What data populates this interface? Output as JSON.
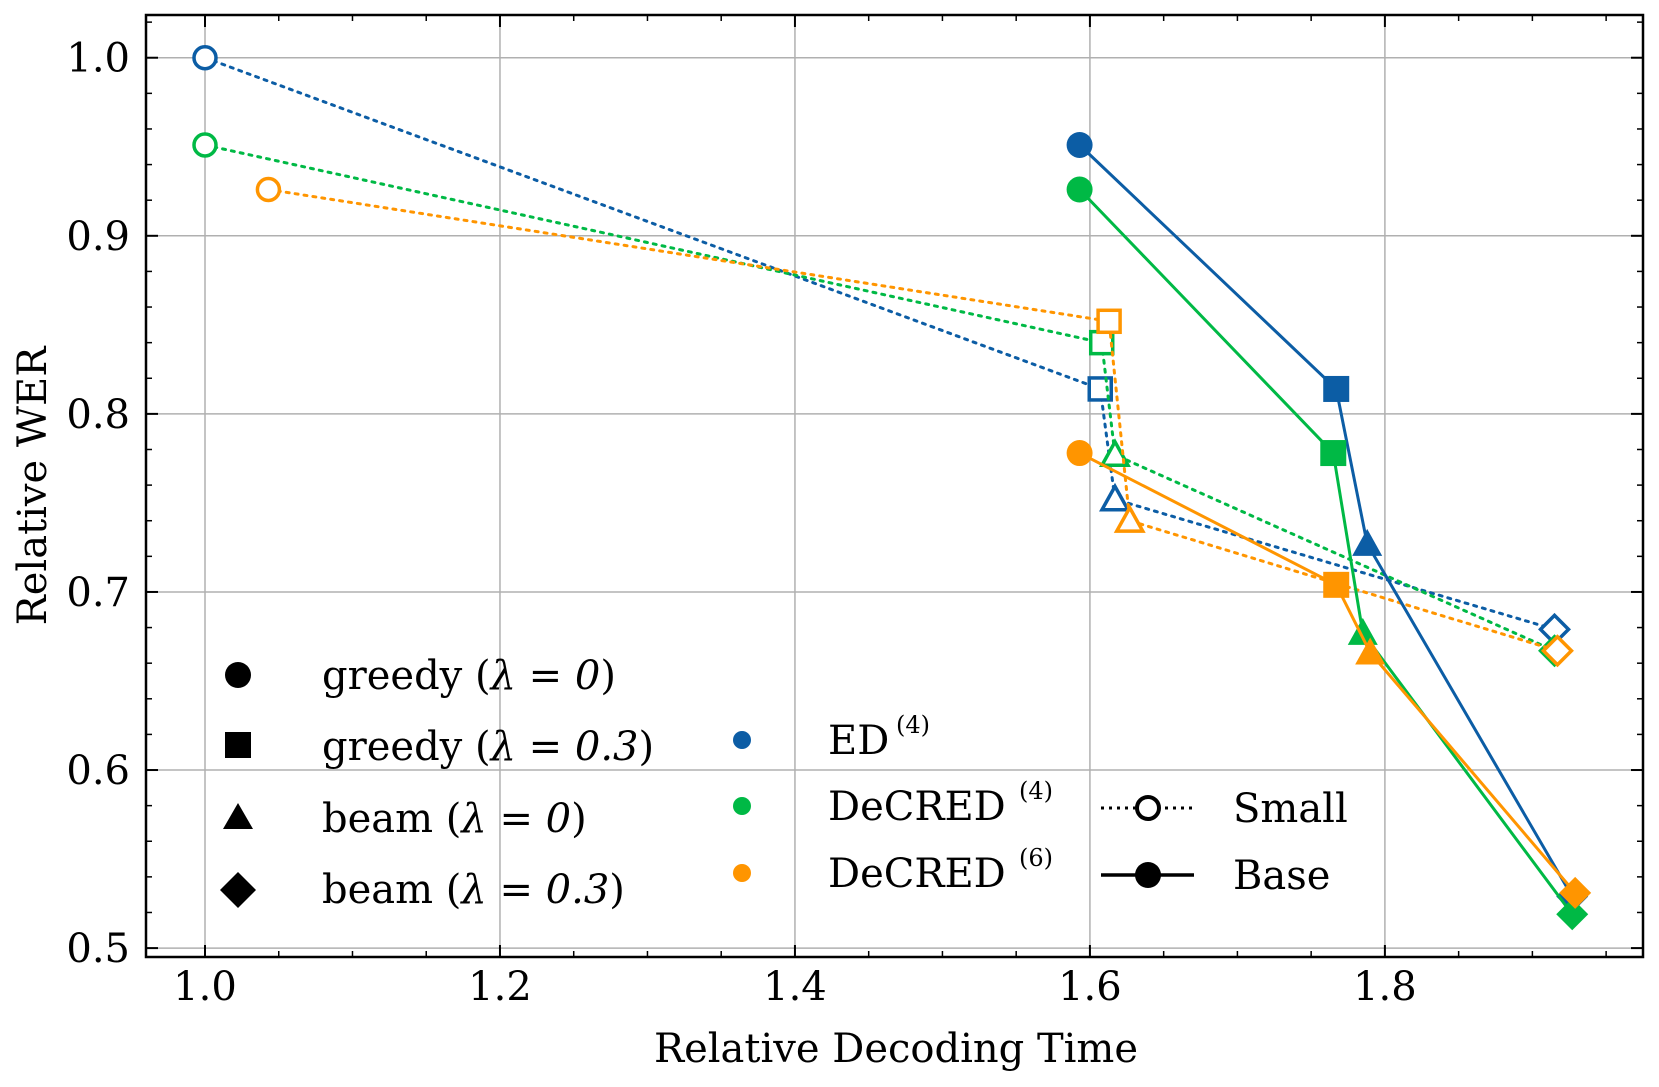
{
  "chart_data": {
    "type": "line",
    "title": "",
    "xlabel": "Relative Decoding Time",
    "ylabel": "Relative WER",
    "xlim": [
      0.96,
      1.975
    ],
    "ylim": [
      0.495,
      1.024
    ],
    "xticks": [
      1.0,
      1.2,
      1.4,
      1.6,
      1.8
    ],
    "xtick_labels": [
      "1.0",
      "1.2",
      "1.4",
      "1.6",
      "1.8"
    ],
    "yticks": [
      0.5,
      0.6,
      0.7,
      0.8,
      0.9,
      1.0
    ],
    "ytick_labels": [
      "0.5",
      "0.6",
      "0.7",
      "0.8",
      "0.9",
      "1.0"
    ],
    "grid": true,
    "colors": {
      "ED4": "#0C5DA5",
      "DeCRED4": "#00B945",
      "DeCRED6": "#FF9500"
    },
    "points": [
      "greedy (λ=0)",
      "greedy (λ=0.3)",
      "beam (λ=0)",
      "beam (λ=0.3)"
    ],
    "series": [
      {
        "name": "ED(4) Small",
        "model": "ED4",
        "size": "Small",
        "x": [
          1.0,
          1.607,
          1.617,
          1.915
        ],
        "y": [
          1.0,
          0.814,
          0.752,
          0.679
        ]
      },
      {
        "name": "DeCRED(4) Small",
        "model": "DeCRED4",
        "size": "Small",
        "x": [
          1.0,
          1.608,
          1.617,
          1.915
        ],
        "y": [
          0.951,
          0.84,
          0.777,
          0.667
        ]
      },
      {
        "name": "DeCRED(6) Small",
        "model": "DeCRED6",
        "size": "Small",
        "x": [
          1.043,
          1.613,
          1.627,
          1.917
        ],
        "y": [
          0.926,
          0.852,
          0.74,
          0.667
        ]
      },
      {
        "name": "ED(4) Base",
        "model": "ED4",
        "size": "Base",
        "x": [
          1.593,
          1.767,
          1.788,
          1.927
        ],
        "y": [
          0.951,
          0.814,
          0.727,
          0.529
        ]
      },
      {
        "name": "DeCRED(4) Base",
        "model": "DeCRED4",
        "size": "Base",
        "x": [
          1.593,
          1.765,
          1.785,
          1.927
        ],
        "y": [
          0.926,
          0.778,
          0.677,
          0.519
        ]
      },
      {
        "name": "DeCRED(6) Base",
        "model": "DeCRED6",
        "size": "Base",
        "x": [
          1.593,
          1.767,
          1.79,
          1.929
        ],
        "y": [
          0.778,
          0.704,
          0.666,
          0.531
        ]
      }
    ],
    "legend_markers": {
      "greedy0": {
        "math": "λ = 0",
        "prefix": "greedy (",
        "suffix": ")"
      },
      "greedy03": {
        "math": "λ = 0.3",
        "prefix": "greedy (",
        "suffix": ")"
      },
      "beam0": {
        "math": "λ = 0",
        "prefix": "beam (",
        "suffix": ")"
      },
      "beam03": {
        "math": "λ = 0.3",
        "prefix": "beam (",
        "suffix": ")"
      }
    },
    "legend_models": {
      "ed4": {
        "base": "ED",
        "sup": "(4)"
      },
      "decred4": {
        "base": "DeCRED",
        "sup": "(4)"
      },
      "decred6": {
        "base": "DeCRED",
        "sup": "(6)"
      }
    },
    "legend_sizes": {
      "small": "Small",
      "base": "Base"
    }
  }
}
